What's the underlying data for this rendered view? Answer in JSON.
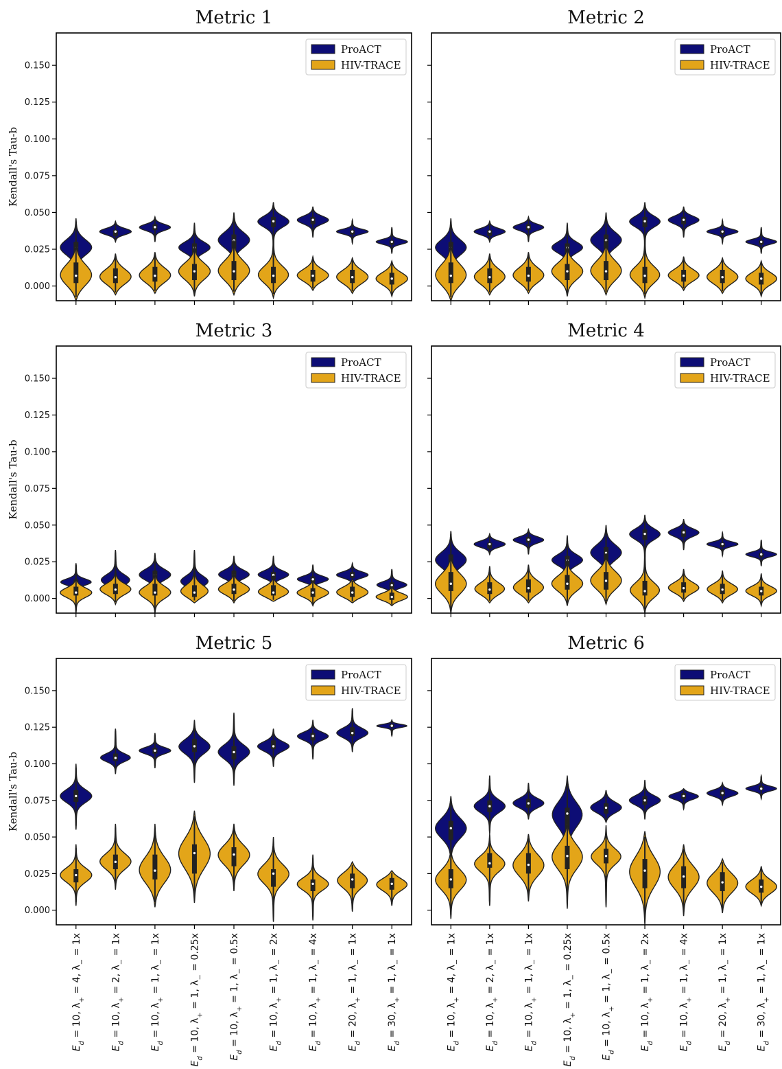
{
  "colors": {
    "proact": "#0d0d75",
    "hivtrace": "#e3a519",
    "edge": "#222222",
    "axes": "#000000"
  },
  "chart_data": {
    "type": "violin",
    "ylabel": "Kendall's Tau-b",
    "ylim": [
      -0.01,
      0.172
    ],
    "yticks": [
      0.0,
      0.025,
      0.05,
      0.075,
      0.1,
      0.125,
      0.15
    ],
    "ytick_labels": [
      "0.000",
      "0.025",
      "0.050",
      "0.075",
      "0.100",
      "0.125",
      "0.150"
    ],
    "legend": {
      "position": "top-right",
      "entries": [
        "ProACT",
        "HIV-TRACE"
      ]
    },
    "categories": [
      "E_d = 10, λ+ = 4, λ− = 1x",
      "E_d = 10, λ+ = 2, λ− = 1x",
      "E_d = 10, λ+ = 1, λ− = 1x",
      "E_d = 10, λ+ = 1, λ− = 0.25x",
      "E_d = 10, λ+ = 1, λ− = 0.5x",
      "E_d = 10, λ+ = 1, λ− = 2x",
      "E_d = 10, λ+ = 1, λ− = 4x",
      "E_d = 20, λ+ = 1, λ− = 1x",
      "E_d = 30, λ+ = 1, λ− = 1x"
    ],
    "category_parts": [
      {
        "ed": "10",
        "lp": "4",
        "lm": "1x"
      },
      {
        "ed": "10",
        "lp": "2",
        "lm": "1x"
      },
      {
        "ed": "10",
        "lp": "1",
        "lm": "1x"
      },
      {
        "ed": "10",
        "lp": "1",
        "lm": "0.25x"
      },
      {
        "ed": "10",
        "lp": "1",
        "lm": "0.5x"
      },
      {
        "ed": "10",
        "lp": "1",
        "lm": "2x"
      },
      {
        "ed": "10",
        "lp": "1",
        "lm": "4x"
      },
      {
        "ed": "20",
        "lp": "1",
        "lm": "1x"
      },
      {
        "ed": "30",
        "lp": "1",
        "lm": "1x"
      }
    ],
    "panels": [
      {
        "title": "Metric 1",
        "series": [
          {
            "name": "ProACT",
            "median": [
              0.026,
              0.037,
              0.04,
              0.026,
              0.031,
              0.044,
              0.045,
              0.037,
              0.03
            ],
            "q1": [
              0.02,
              0.034,
              0.038,
              0.022,
              0.025,
              0.04,
              0.042,
              0.035,
              0.028
            ],
            "q3": [
              0.03,
              0.038,
              0.042,
              0.029,
              0.035,
              0.047,
              0.047,
              0.038,
              0.031
            ],
            "min": [
              0.01,
              0.03,
              0.03,
              0.013,
              0.016,
              0.026,
              0.033,
              0.029,
              0.022
            ],
            "max": [
              0.046,
              0.044,
              0.047,
              0.043,
              0.05,
              0.057,
              0.054,
              0.045,
              0.04
            ]
          },
          {
            "name": "HIV-TRACE",
            "median": [
              0.007,
              0.006,
              0.007,
              0.01,
              0.01,
              0.007,
              0.007,
              0.006,
              0.005
            ],
            "q1": [
              0.002,
              0.002,
              0.003,
              0.004,
              0.004,
              0.002,
              0.003,
              0.002,
              0.001
            ],
            "q3": [
              0.016,
              0.012,
              0.013,
              0.015,
              0.017,
              0.013,
              0.011,
              0.011,
              0.009
            ],
            "min": [
              -0.01,
              -0.006,
              -0.005,
              -0.007,
              -0.006,
              -0.008,
              -0.003,
              -0.005,
              -0.007
            ],
            "max": [
              0.03,
              0.022,
              0.023,
              0.027,
              0.031,
              0.033,
              0.02,
              0.019,
              0.017
            ]
          }
        ]
      },
      {
        "title": "Metric 2",
        "series": [
          {
            "name": "ProACT",
            "median": [
              0.026,
              0.037,
              0.04,
              0.026,
              0.031,
              0.044,
              0.045,
              0.037,
              0.03
            ],
            "q1": [
              0.02,
              0.034,
              0.038,
              0.022,
              0.025,
              0.04,
              0.042,
              0.035,
              0.028
            ],
            "q3": [
              0.03,
              0.038,
              0.042,
              0.029,
              0.035,
              0.047,
              0.047,
              0.038,
              0.031
            ],
            "min": [
              0.01,
              0.03,
              0.03,
              0.013,
              0.016,
              0.026,
              0.033,
              0.029,
              0.022
            ],
            "max": [
              0.046,
              0.044,
              0.047,
              0.043,
              0.05,
              0.057,
              0.054,
              0.045,
              0.04
            ]
          },
          {
            "name": "HIV-TRACE",
            "median": [
              0.007,
              0.006,
              0.007,
              0.01,
              0.01,
              0.007,
              0.007,
              0.006,
              0.005
            ],
            "q1": [
              0.002,
              0.002,
              0.003,
              0.004,
              0.004,
              0.002,
              0.003,
              0.002,
              0.001
            ],
            "q3": [
              0.016,
              0.012,
              0.013,
              0.015,
              0.017,
              0.013,
              0.011,
              0.011,
              0.009
            ],
            "min": [
              -0.01,
              -0.006,
              -0.005,
              -0.007,
              -0.006,
              -0.008,
              -0.003,
              -0.005,
              -0.007
            ],
            "max": [
              0.03,
              0.022,
              0.023,
              0.027,
              0.031,
              0.033,
              0.02,
              0.019,
              0.017
            ]
          }
        ]
      },
      {
        "title": "Metric 3",
        "series": [
          {
            "name": "ProACT",
            "median": [
              0.011,
              0.012,
              0.016,
              0.011,
              0.016,
              0.016,
              0.013,
              0.016,
              0.009
            ],
            "q1": [
              0.009,
              0.008,
              0.012,
              0.008,
              0.013,
              0.013,
              0.011,
              0.014,
              0.007
            ],
            "q3": [
              0.013,
              0.015,
              0.019,
              0.015,
              0.019,
              0.018,
              0.015,
              0.018,
              0.011
            ],
            "min": [
              0.003,
              0.003,
              0.004,
              0.003,
              0.008,
              0.008,
              0.006,
              0.009,
              0.003
            ],
            "max": [
              0.024,
              0.033,
              0.031,
              0.033,
              0.029,
              0.029,
              0.023,
              0.024,
              0.02
            ]
          },
          {
            "name": "HIV-TRACE",
            "median": [
              0.004,
              0.006,
              0.004,
              0.004,
              0.006,
              0.004,
              0.004,
              0.004,
              0.001
            ],
            "q1": [
              0.002,
              0.003,
              0.002,
              0.001,
              0.003,
              0.002,
              0.001,
              0.001,
              -0.001
            ],
            "q3": [
              0.008,
              0.01,
              0.01,
              0.009,
              0.01,
              0.009,
              0.007,
              0.008,
              0.004
            ],
            "min": [
              -0.01,
              -0.004,
              -0.01,
              -0.003,
              -0.003,
              -0.002,
              -0.005,
              -0.003,
              -0.005
            ],
            "max": [
              0.017,
              0.021,
              0.02,
              0.024,
              0.019,
              0.015,
              0.012,
              0.013,
              0.008
            ]
          }
        ]
      },
      {
        "title": "Metric 4",
        "series": [
          {
            "name": "ProACT",
            "median": [
              0.026,
              0.037,
              0.04,
              0.026,
              0.031,
              0.044,
              0.045,
              0.037,
              0.03
            ],
            "q1": [
              0.02,
              0.034,
              0.038,
              0.022,
              0.025,
              0.04,
              0.042,
              0.035,
              0.028
            ],
            "q3": [
              0.03,
              0.038,
              0.042,
              0.029,
              0.035,
              0.047,
              0.047,
              0.038,
              0.031
            ],
            "min": [
              0.01,
              0.03,
              0.03,
              0.013,
              0.016,
              0.026,
              0.033,
              0.029,
              0.022
            ],
            "max": [
              0.046,
              0.044,
              0.047,
              0.043,
              0.05,
              0.057,
              0.054,
              0.045,
              0.04
            ]
          },
          {
            "name": "HIV-TRACE",
            "median": [
              0.01,
              0.006,
              0.007,
              0.01,
              0.012,
              0.005,
              0.007,
              0.006,
              0.005
            ],
            "q1": [
              0.005,
              0.003,
              0.004,
              0.006,
              0.006,
              0.002,
              0.004,
              0.003,
              0.002
            ],
            "q3": [
              0.018,
              0.011,
              0.013,
              0.016,
              0.018,
              0.012,
              0.011,
              0.01,
              0.008
            ],
            "min": [
              -0.01,
              -0.003,
              -0.003,
              -0.005,
              -0.004,
              -0.01,
              -0.002,
              -0.003,
              -0.005
            ],
            "max": [
              0.03,
              0.022,
              0.023,
              0.027,
              0.031,
              0.033,
              0.02,
              0.019,
              0.017
            ]
          }
        ]
      },
      {
        "title": "Metric 5",
        "series": [
          {
            "name": "ProACT",
            "median": [
              0.078,
              0.104,
              0.109,
              0.112,
              0.108,
              0.112,
              0.119,
              0.121,
              0.126
            ],
            "q1": [
              0.074,
              0.102,
              0.107,
              0.108,
              0.103,
              0.11,
              0.116,
              0.119,
              0.125
            ],
            "q3": [
              0.082,
              0.107,
              0.111,
              0.117,
              0.112,
              0.116,
              0.121,
              0.125,
              0.127
            ],
            "min": [
              0.055,
              0.093,
              0.097,
              0.087,
              0.085,
              0.098,
              0.103,
              0.108,
              0.119
            ],
            "max": [
              0.1,
              0.124,
              0.121,
              0.13,
              0.135,
              0.124,
              0.13,
              0.138,
              0.13
            ]
          },
          {
            "name": "HIV-TRACE",
            "median": [
              0.024,
              0.033,
              0.027,
              0.039,
              0.038,
              0.025,
              0.018,
              0.021,
              0.018
            ],
            "q1": [
              0.019,
              0.028,
              0.021,
              0.025,
              0.03,
              0.016,
              0.013,
              0.015,
              0.014
            ],
            "q3": [
              0.028,
              0.038,
              0.038,
              0.045,
              0.043,
              0.028,
              0.021,
              0.025,
              0.022
            ],
            "min": [
              0.003,
              0.014,
              0.002,
              0.005,
              0.013,
              -0.008,
              -0.007,
              -0.001,
              0.003
            ],
            "max": [
              0.045,
              0.059,
              0.059,
              0.068,
              0.059,
              0.05,
              0.038,
              0.033,
              0.027
            ]
          }
        ]
      },
      {
        "title": "Metric 6",
        "series": [
          {
            "name": "ProACT",
            "median": [
              0.056,
              0.071,
              0.073,
              0.066,
              0.07,
              0.075,
              0.078,
              0.08,
              0.083
            ],
            "q1": [
              0.048,
              0.067,
              0.07,
              0.054,
              0.066,
              0.072,
              0.076,
              0.078,
              0.082
            ],
            "q3": [
              0.061,
              0.075,
              0.076,
              0.07,
              0.073,
              0.078,
              0.08,
              0.082,
              0.085
            ],
            "min": [
              0.033,
              0.052,
              0.062,
              0.023,
              0.06,
              0.062,
              0.069,
              0.072,
              0.076
            ],
            "max": [
              0.078,
              0.092,
              0.087,
              0.092,
              0.082,
              0.089,
              0.083,
              0.087,
              0.092
            ]
          },
          {
            "name": "HIV-TRACE",
            "median": [
              0.021,
              0.032,
              0.031,
              0.037,
              0.037,
              0.027,
              0.023,
              0.019,
              0.016
            ],
            "q1": [
              0.015,
              0.029,
              0.025,
              0.028,
              0.032,
              0.015,
              0.015,
              0.013,
              0.012
            ],
            "q3": [
              0.028,
              0.039,
              0.039,
              0.044,
              0.042,
              0.035,
              0.03,
              0.026,
              0.021
            ],
            "min": [
              -0.006,
              0.003,
              0.006,
              0.001,
              0.002,
              -0.01,
              -0.004,
              -0.002,
              0.003
            ],
            "max": [
              0.043,
              0.052,
              0.052,
              0.062,
              0.058,
              0.054,
              0.045,
              0.035,
              0.03
            ]
          }
        ]
      }
    ]
  }
}
